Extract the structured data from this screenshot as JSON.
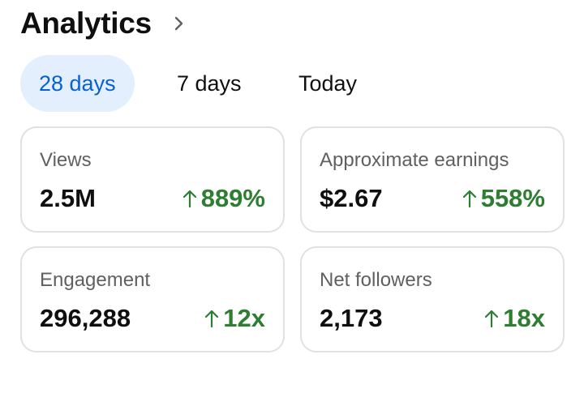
{
  "header": {
    "title": "Analytics"
  },
  "tabs": [
    {
      "label": "28 days",
      "selected": true
    },
    {
      "label": "7 days"
    },
    {
      "label": "Today"
    }
  ],
  "cards": [
    {
      "label": "Views",
      "value": "2.5M",
      "change": "889%"
    },
    {
      "label": "Approximate earnings",
      "value": "$2.67",
      "change": "558%"
    },
    {
      "label": "Engagement",
      "value": "296,288",
      "change": "12x"
    },
    {
      "label": "Net followers",
      "value": "2,173",
      "change": "18x"
    }
  ]
}
